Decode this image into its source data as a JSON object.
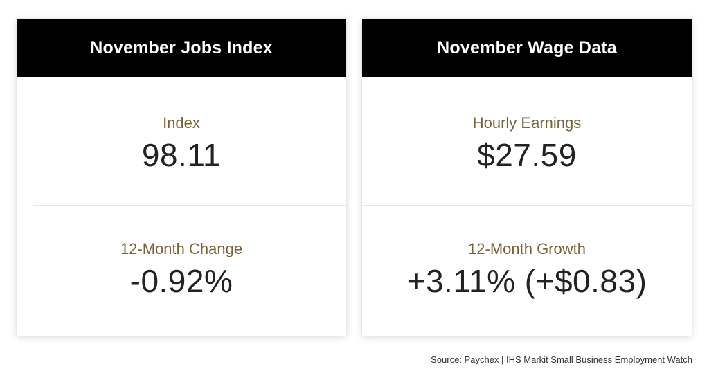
{
  "cards": [
    {
      "title": "November Jobs Index",
      "metrics": [
        {
          "label": "Index",
          "value": "98.11"
        },
        {
          "label": "12-Month Change",
          "value": "-0.92%"
        }
      ]
    },
    {
      "title": "November Wage Data",
      "metrics": [
        {
          "label": "Hourly Earnings",
          "value": "$27.59"
        },
        {
          "label": "12-Month Growth",
          "value": "+3.11% (+$0.83)"
        }
      ]
    }
  ],
  "source": "Source: Paychex | IHS Markit Small Business Employment Watch",
  "colors": {
    "header_bg": "#000000",
    "header_text": "#ffffff",
    "label": "#7a6237",
    "value": "#222222"
  }
}
